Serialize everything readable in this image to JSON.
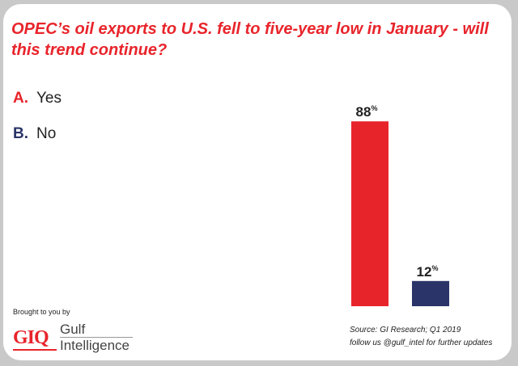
{
  "title": "OPEC’s oil exports to U.S. fell to five-year low in January - will this trend continue?",
  "legend": [
    {
      "letter": "A.",
      "label": "Yes",
      "color": "#e8242b"
    },
    {
      "letter": "B.",
      "label": "No",
      "color": "#2b3468"
    }
  ],
  "chart_data": {
    "type": "bar",
    "categories": [
      "Yes",
      "No"
    ],
    "values": [
      88,
      12
    ],
    "value_suffix": "%",
    "colors": [
      "#e8242b",
      "#2b3468"
    ],
    "ylim": [
      0,
      100
    ],
    "grid": false,
    "legend_placement": "top-left"
  },
  "footer": {
    "sponsor_text": "Brought to you by",
    "logo_mark": "GIQ",
    "logo_line1": "Gulf",
    "logo_line2": "Intelligence",
    "source": "Source: GI Research; Q1 2019",
    "follow": "follow us @gulf_intel for further updates"
  }
}
